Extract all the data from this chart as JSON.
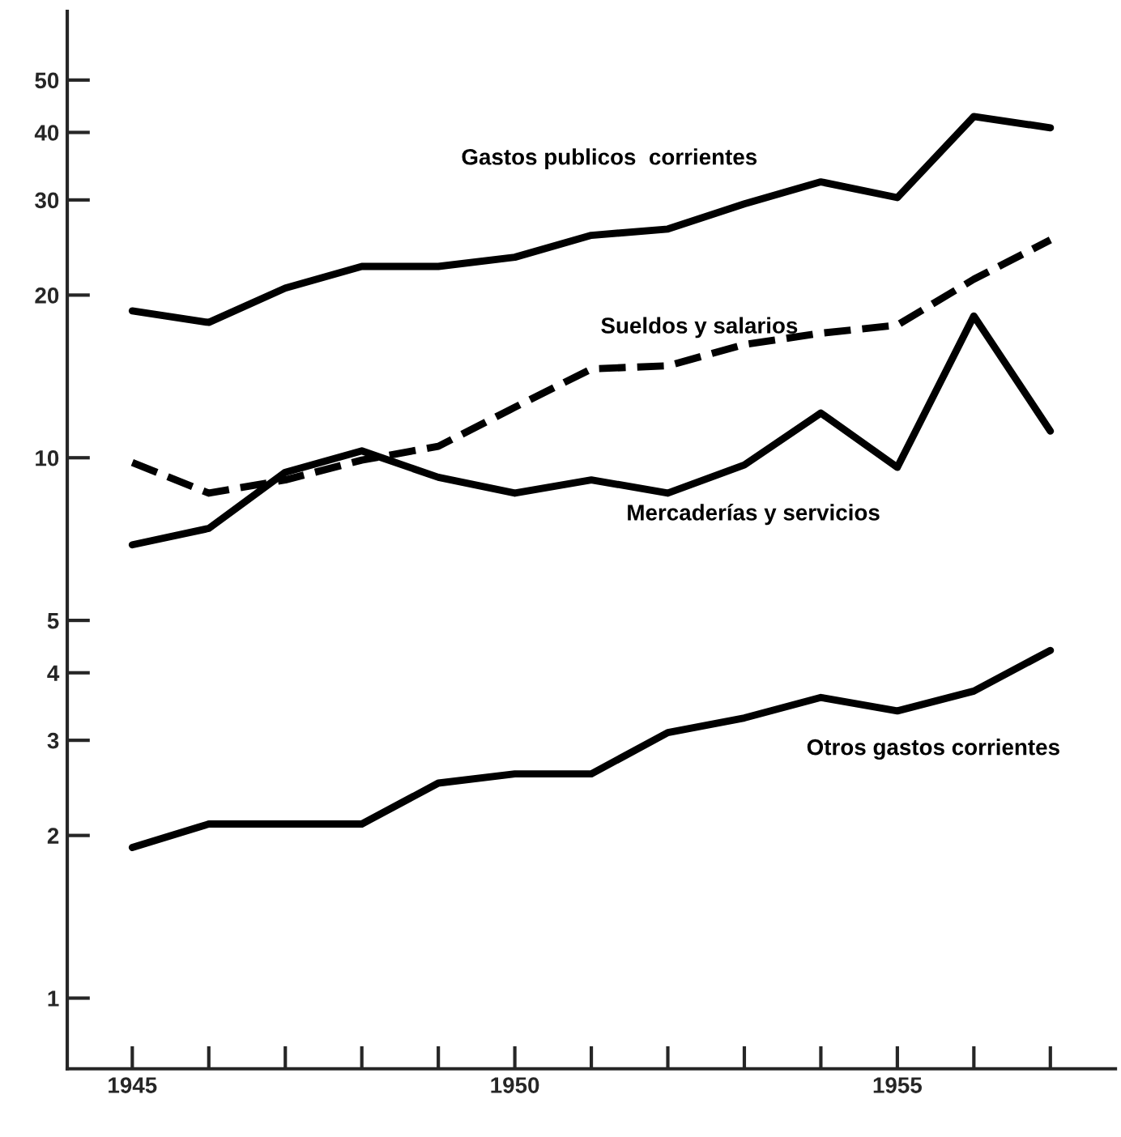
{
  "chart_data": {
    "type": "line",
    "log": "y",
    "grid": false,
    "marker": "none",
    "x": [
      1945,
      1946,
      1947,
      1948,
      1949,
      1950,
      1951,
      1952,
      1953,
      1954,
      1955,
      1956,
      1957
    ],
    "xlim": [
      1944.15,
      1957.85
    ],
    "xticks": [
      {
        "value": 1945,
        "label": "1945"
      },
      {
        "value": 1946,
        "label": null
      },
      {
        "value": 1947,
        "label": null
      },
      {
        "value": 1948,
        "label": null
      },
      {
        "value": 1949,
        "label": null
      },
      {
        "value": 1950,
        "label": "1950"
      },
      {
        "value": 1951,
        "label": null
      },
      {
        "value": 1952,
        "label": null
      },
      {
        "value": 1953,
        "label": null
      },
      {
        "value": 1954,
        "label": null
      },
      {
        "value": 1955,
        "label": "1955"
      },
      {
        "value": 1956,
        "label": null
      },
      {
        "value": 1957,
        "label": null
      }
    ],
    "ylim": [
      0.74,
      67
    ],
    "yticks": [
      1,
      2,
      3,
      4,
      5,
      10,
      20,
      30,
      40,
      50
    ],
    "series": [
      {
        "name": "Gastos publicos  corrientes",
        "color": "#000000",
        "line_style": "solid",
        "values": [
          18.7,
          17.8,
          20.6,
          22.6,
          22.6,
          23.5,
          25.8,
          26.5,
          29.5,
          32.4,
          30.3,
          42.8,
          40.8
        ]
      },
      {
        "name": "Sueldos y salarios",
        "color": "#000000",
        "line_style": "dashed",
        "values": [
          9.8,
          8.6,
          9.1,
          9.9,
          10.5,
          12.4,
          14.6,
          14.8,
          16.2,
          17.0,
          17.6,
          21.4,
          25.3
        ]
      },
      {
        "name": "Mercaderías y servicios",
        "color": "#000000",
        "line_style": "solid",
        "values": [
          6.9,
          7.4,
          9.4,
          10.3,
          9.2,
          8.6,
          9.1,
          8.6,
          9.7,
          12.1,
          9.6,
          18.3,
          11.2
        ]
      },
      {
        "name": "Otros gastos corrientes",
        "color": "#000000",
        "line_style": "solid",
        "values": [
          1.9,
          2.1,
          2.1,
          2.1,
          2.5,
          2.6,
          2.6,
          3.1,
          3.3,
          3.6,
          3.4,
          3.7,
          4.4
        ]
      }
    ]
  }
}
